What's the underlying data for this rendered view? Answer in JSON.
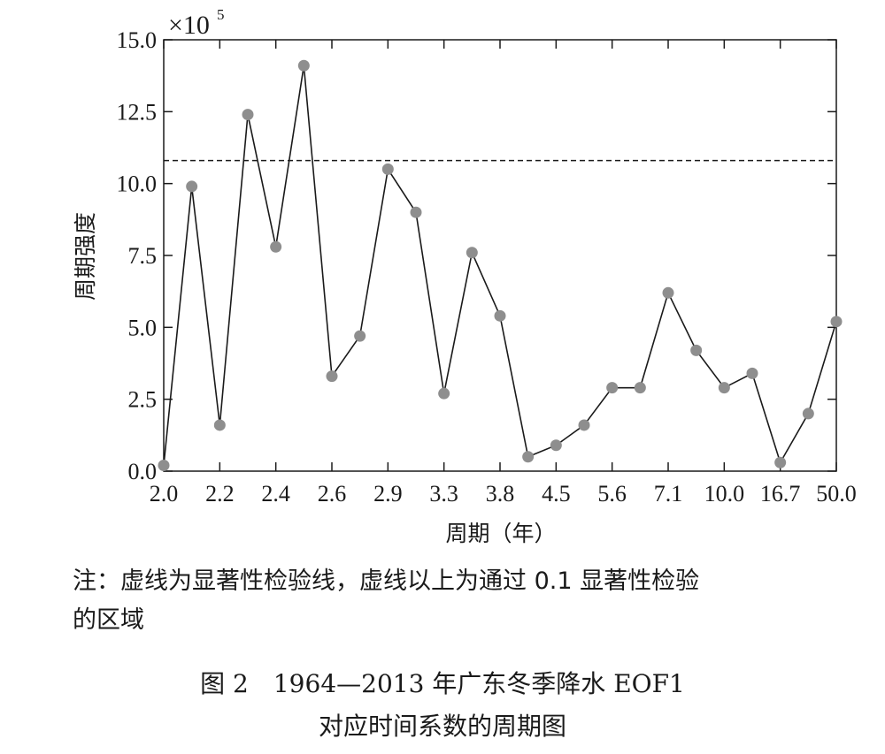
{
  "chart_data": {
    "type": "line",
    "xlabel": "周期（年）",
    "ylabel": "周期强度",
    "y_multiplier_label": "×10",
    "y_multiplier_exp": "5",
    "ylim": [
      0,
      15
    ],
    "y_ticks": [
      "0.0",
      "2.5",
      "5.0",
      "7.5",
      "10.0",
      "12.5",
      "15.0"
    ],
    "x_tick_labels": [
      "2.0",
      "2.2",
      "2.4",
      "2.6",
      "2.9",
      "3.3",
      "3.8",
      "4.5",
      "5.6",
      "7.1",
      "10.0",
      "16.7",
      "50.0"
    ],
    "x_tick_point_index": [
      0,
      2,
      4,
      6,
      8,
      10,
      12,
      14,
      16,
      18,
      20,
      22,
      24
    ],
    "significance_line": 10.8,
    "line_style": "dashed",
    "marker": "circle",
    "marker_color": "#8e8e8e",
    "line_color": "#1a1a1a",
    "values": [
      0.2,
      9.9,
      1.6,
      12.4,
      7.8,
      14.1,
      3.3,
      4.7,
      10.5,
      9.0,
      2.7,
      7.6,
      5.4,
      0.5,
      0.9,
      1.6,
      2.9,
      2.9,
      6.2,
      4.2,
      2.9,
      3.4,
      0.3,
      2.0,
      5.2
    ]
  },
  "note": {
    "line1": "注：虚线为显著性检验线，虚线以上为通过 0.1 显著性检验",
    "line2": "的区域"
  },
  "caption": {
    "line1": "图 2　1964—2013 年广东冬季降水 EOF1",
    "line2": "对应时间系数的周期图"
  }
}
